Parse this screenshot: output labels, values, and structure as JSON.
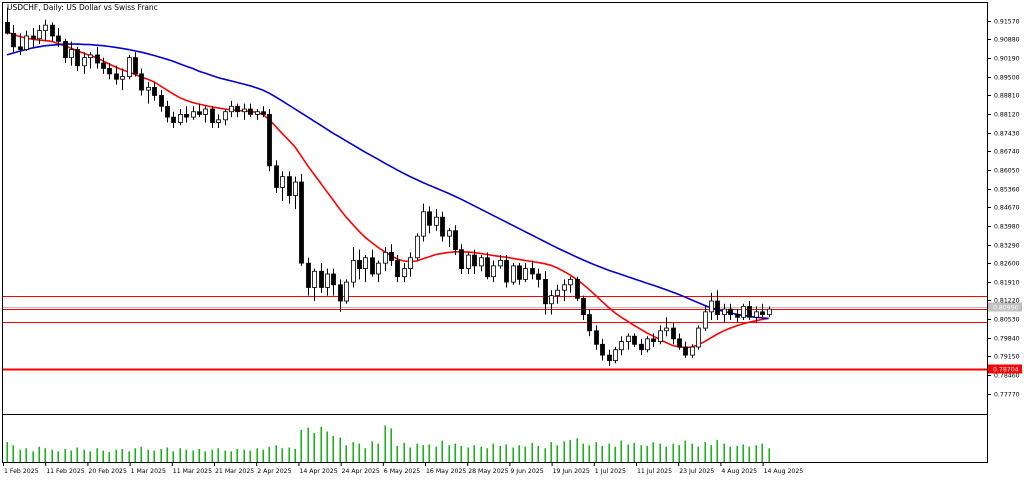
{
  "chart_data": {
    "type": "candlestick",
    "title": "USDCHF, Daily:  US Dollar vs Swiss Franc",
    "symbol": "USDCHF",
    "timeframe": "Daily",
    "ylim": [
      0.7706,
      0.9222
    ],
    "grid": false,
    "y_ticks": [
      "0.91570",
      "0.90880",
      "0.90190",
      "0.89500",
      "0.88810",
      "0.88120",
      "0.87430",
      "0.86740",
      "0.86050",
      "0.85360",
      "0.84670",
      "0.83980",
      "0.83290",
      "0.82600",
      "0.81910",
      "0.81220",
      "0.80530",
      "0.79840",
      "0.79150",
      "0.78460",
      "0.77770"
    ],
    "x_ticks": [
      "1 Feb 2025",
      "11 Feb 2025",
      "20 Feb 2025",
      "1 Mar 2025",
      "11 Mar 2025",
      "21 Mar 2025",
      "2 Apr 2025",
      "14 Apr 2025",
      "24 Apr 2025",
      "6 May 2025",
      "16 May 2025",
      "28 May 2025",
      "9 Jun 2025",
      "19 Jun 2025",
      "1 Jul 2025",
      "11 Jul 2025",
      "23 Jul 2025",
      "4 Aug 2025",
      "14 Aug 2025"
    ],
    "candles": [
      [
        0.915,
        0.9205,
        0.9105,
        0.911
      ],
      [
        0.911,
        0.914,
        0.904,
        0.906
      ],
      [
        0.906,
        0.911,
        0.903,
        0.905
      ],
      [
        0.905,
        0.912,
        0.9045,
        0.91
      ],
      [
        0.91,
        0.913,
        0.906,
        0.909
      ],
      [
        0.909,
        0.914,
        0.907,
        0.912
      ],
      [
        0.912,
        0.916,
        0.908,
        0.914
      ],
      [
        0.914,
        0.915,
        0.908,
        0.91
      ],
      [
        0.91,
        0.913,
        0.906,
        0.908
      ],
      [
        0.908,
        0.909,
        0.9,
        0.902
      ],
      [
        0.902,
        0.908,
        0.899,
        0.905
      ],
      [
        0.905,
        0.906,
        0.897,
        0.899
      ],
      [
        0.899,
        0.904,
        0.896,
        0.902
      ],
      [
        0.902,
        0.904,
        0.898,
        0.903
      ],
      [
        0.903,
        0.906,
        0.898,
        0.9
      ],
      [
        0.9,
        0.902,
        0.896,
        0.898
      ],
      [
        0.898,
        0.9,
        0.894,
        0.896
      ],
      [
        0.896,
        0.899,
        0.892,
        0.894
      ],
      [
        0.894,
        0.898,
        0.89,
        0.895
      ],
      [
        0.895,
        0.903,
        0.894,
        0.902
      ],
      [
        0.902,
        0.904,
        0.895,
        0.896
      ],
      [
        0.896,
        0.898,
        0.888,
        0.89
      ],
      [
        0.89,
        0.893,
        0.885,
        0.891
      ],
      [
        0.891,
        0.893,
        0.886,
        0.888
      ],
      [
        0.888,
        0.89,
        0.882,
        0.884
      ],
      [
        0.884,
        0.886,
        0.878,
        0.88
      ],
      [
        0.88,
        0.882,
        0.876,
        0.878
      ],
      [
        0.878,
        0.883,
        0.877,
        0.881
      ],
      [
        0.881,
        0.884,
        0.878,
        0.88
      ],
      [
        0.88,
        0.884,
        0.879,
        0.882
      ],
      [
        0.882,
        0.885,
        0.88,
        0.881
      ],
      [
        0.881,
        0.884,
        0.878,
        0.883
      ],
      [
        0.883,
        0.884,
        0.876,
        0.878
      ],
      [
        0.878,
        0.881,
        0.876,
        0.879
      ],
      [
        0.879,
        0.883,
        0.877,
        0.882
      ],
      [
        0.882,
        0.886,
        0.88,
        0.884
      ],
      [
        0.884,
        0.885,
        0.88,
        0.882
      ],
      [
        0.882,
        0.885,
        0.879,
        0.883
      ],
      [
        0.883,
        0.885,
        0.88,
        0.881
      ],
      [
        0.881,
        0.883,
        0.879,
        0.882
      ],
      [
        0.882,
        0.884,
        0.88,
        0.881
      ],
      [
        0.881,
        0.883,
        0.86,
        0.862
      ],
      [
        0.862,
        0.864,
        0.852,
        0.854
      ],
      [
        0.854,
        0.86,
        0.849,
        0.858
      ],
      [
        0.858,
        0.86,
        0.848,
        0.851
      ],
      [
        0.851,
        0.858,
        0.846,
        0.856
      ],
      [
        0.856,
        0.859,
        0.825,
        0.826
      ],
      [
        0.826,
        0.828,
        0.814,
        0.817
      ],
      [
        0.817,
        0.824,
        0.812,
        0.823
      ],
      [
        0.823,
        0.826,
        0.815,
        0.817
      ],
      [
        0.817,
        0.824,
        0.814,
        0.822
      ],
      [
        0.822,
        0.824,
        0.814,
        0.818
      ],
      [
        0.818,
        0.82,
        0.808,
        0.812
      ],
      [
        0.812,
        0.82,
        0.811,
        0.819
      ],
      [
        0.819,
        0.832,
        0.817,
        0.827
      ],
      [
        0.827,
        0.831,
        0.82,
        0.824
      ],
      [
        0.824,
        0.829,
        0.819,
        0.828
      ],
      [
        0.828,
        0.831,
        0.821,
        0.822
      ],
      [
        0.822,
        0.827,
        0.819,
        0.826
      ],
      [
        0.826,
        0.832,
        0.823,
        0.83
      ],
      [
        0.83,
        0.833,
        0.825,
        0.827
      ],
      [
        0.827,
        0.829,
        0.819,
        0.821
      ],
      [
        0.821,
        0.826,
        0.819,
        0.824
      ],
      [
        0.824,
        0.83,
        0.821,
        0.828
      ],
      [
        0.828,
        0.837,
        0.827,
        0.836
      ],
      [
        0.836,
        0.848,
        0.834,
        0.845
      ],
      [
        0.845,
        0.847,
        0.837,
        0.84
      ],
      [
        0.84,
        0.846,
        0.838,
        0.843
      ],
      [
        0.843,
        0.845,
        0.834,
        0.836
      ],
      [
        0.836,
        0.839,
        0.832,
        0.838
      ],
      [
        0.838,
        0.84,
        0.829,
        0.831
      ],
      [
        0.831,
        0.833,
        0.822,
        0.824
      ],
      [
        0.824,
        0.83,
        0.822,
        0.829
      ],
      [
        0.829,
        0.831,
        0.822,
        0.825
      ],
      [
        0.825,
        0.829,
        0.823,
        0.828
      ],
      [
        0.828,
        0.83,
        0.82,
        0.821
      ],
      [
        0.821,
        0.827,
        0.819,
        0.825
      ],
      [
        0.825,
        0.829,
        0.824,
        0.827
      ],
      [
        0.827,
        0.829,
        0.817,
        0.819
      ],
      [
        0.819,
        0.826,
        0.818,
        0.825
      ],
      [
        0.825,
        0.826,
        0.818,
        0.82
      ],
      [
        0.82,
        0.826,
        0.819,
        0.824
      ],
      [
        0.824,
        0.827,
        0.82,
        0.822
      ],
      [
        0.822,
        0.824,
        0.817,
        0.82
      ],
      [
        0.82,
        0.823,
        0.807,
        0.811
      ],
      [
        0.811,
        0.816,
        0.807,
        0.814
      ],
      [
        0.814,
        0.818,
        0.811,
        0.816
      ],
      [
        0.816,
        0.82,
        0.812,
        0.818
      ],
      [
        0.818,
        0.821,
        0.815,
        0.82
      ],
      [
        0.82,
        0.821,
        0.812,
        0.813
      ],
      [
        0.813,
        0.814,
        0.805,
        0.807
      ],
      [
        0.807,
        0.809,
        0.799,
        0.801
      ],
      [
        0.801,
        0.803,
        0.794,
        0.796
      ],
      [
        0.796,
        0.798,
        0.79,
        0.792
      ],
      [
        0.792,
        0.794,
        0.788,
        0.79
      ],
      [
        0.79,
        0.795,
        0.789,
        0.794
      ],
      [
        0.794,
        0.799,
        0.792,
        0.797
      ],
      [
        0.797,
        0.8,
        0.794,
        0.799
      ],
      [
        0.799,
        0.8,
        0.795,
        0.796
      ],
      [
        0.796,
        0.798,
        0.792,
        0.794
      ],
      [
        0.794,
        0.799,
        0.793,
        0.798
      ],
      [
        0.798,
        0.8,
        0.795,
        0.797
      ],
      [
        0.797,
        0.803,
        0.796,
        0.801
      ],
      [
        0.801,
        0.806,
        0.799,
        0.802
      ],
      [
        0.802,
        0.804,
        0.796,
        0.798
      ],
      [
        0.798,
        0.8,
        0.794,
        0.795
      ],
      [
        0.795,
        0.797,
        0.791,
        0.792
      ],
      [
        0.792,
        0.796,
        0.791,
        0.795
      ],
      [
        0.795,
        0.803,
        0.794,
        0.802
      ],
      [
        0.802,
        0.81,
        0.801,
        0.808
      ],
      [
        0.808,
        0.815,
        0.805,
        0.812
      ],
      [
        0.812,
        0.816,
        0.805,
        0.807
      ],
      [
        0.807,
        0.811,
        0.804,
        0.809
      ],
      [
        0.809,
        0.811,
        0.805,
        0.807
      ],
      [
        0.807,
        0.809,
        0.804,
        0.806
      ],
      [
        0.806,
        0.811,
        0.805,
        0.81
      ],
      [
        0.81,
        0.812,
        0.805,
        0.806
      ],
      [
        0.806,
        0.81,
        0.804,
        0.808
      ],
      [
        0.808,
        0.811,
        0.806,
        0.807
      ],
      [
        0.807,
        0.81,
        0.806,
        0.809
      ]
    ],
    "series": [
      {
        "color": "#ff0000",
        "values": [
          0.9115,
          0.9105,
          0.9098,
          0.9092,
          0.9088,
          0.9085,
          0.9083,
          0.908,
          0.9072,
          0.9064,
          0.9055,
          0.9045,
          0.9036,
          0.9028,
          0.902,
          0.9008,
          0.8996,
          0.8985,
          0.8975,
          0.8967,
          0.8958,
          0.8948,
          0.894,
          0.893,
          0.8915,
          0.89,
          0.8885,
          0.8872,
          0.8862,
          0.8854,
          0.8848,
          0.8843,
          0.8838,
          0.8834,
          0.883,
          0.8827,
          0.8825,
          0.8823,
          0.8821,
          0.8818,
          0.881,
          0.879,
          0.8765,
          0.874,
          0.8715,
          0.869,
          0.8655,
          0.862,
          0.8588,
          0.8556,
          0.8524,
          0.8492,
          0.846,
          0.843,
          0.8404,
          0.8378,
          0.8355,
          0.8336,
          0.8318,
          0.8302,
          0.8288,
          0.8275,
          0.8268,
          0.8266,
          0.8268,
          0.8276,
          0.8284,
          0.8292,
          0.8296,
          0.83,
          0.8302,
          0.8302,
          0.8301,
          0.8299,
          0.8296,
          0.8292,
          0.8288,
          0.8285,
          0.8282,
          0.8278,
          0.8274,
          0.827,
          0.8266,
          0.8262,
          0.8258,
          0.8252,
          0.8242,
          0.823,
          0.8216,
          0.82,
          0.8182,
          0.8162,
          0.814,
          0.8118,
          0.8096,
          0.8076,
          0.806,
          0.8045,
          0.803,
          0.8016,
          0.8002,
          0.799,
          0.7978,
          0.7966,
          0.7956,
          0.795,
          0.7948,
          0.795,
          0.7958,
          0.797,
          0.7984,
          0.7998,
          0.801,
          0.802,
          0.8028,
          0.8036,
          0.8042,
          0.8047,
          0.8052,
          0.8056
        ]
      },
      {
        "color": "#0000cc",
        "values": [
          0.903,
          0.9037,
          0.9044,
          0.905,
          0.9056,
          0.906,
          0.9064,
          0.9066,
          0.9068,
          0.907,
          0.907,
          0.907,
          0.9069,
          0.9068,
          0.9066,
          0.9064,
          0.9061,
          0.9058,
          0.9054,
          0.905,
          0.9045,
          0.904,
          0.9034,
          0.9028,
          0.9021,
          0.9014,
          0.9006,
          0.8997,
          0.8988,
          0.898,
          0.897,
          0.8962,
          0.8954,
          0.8946,
          0.894,
          0.8934,
          0.8928,
          0.8922,
          0.8916,
          0.8908,
          0.89,
          0.8888,
          0.8874,
          0.886,
          0.8845,
          0.883,
          0.8815,
          0.88,
          0.8785,
          0.877,
          0.8755,
          0.874,
          0.8726,
          0.8712,
          0.8698,
          0.8684,
          0.867,
          0.8657,
          0.8644,
          0.863,
          0.8617,
          0.8604,
          0.8592,
          0.858,
          0.8569,
          0.8558,
          0.8548,
          0.8538,
          0.8528,
          0.8518,
          0.8507,
          0.8496,
          0.8484,
          0.8472,
          0.846,
          0.8448,
          0.8436,
          0.8424,
          0.8412,
          0.84,
          0.8388,
          0.8376,
          0.8364,
          0.8352,
          0.834,
          0.8328,
          0.8316,
          0.8305,
          0.8294,
          0.8283,
          0.8272,
          0.8262,
          0.8252,
          0.8243,
          0.8234,
          0.8226,
          0.8218,
          0.821,
          0.8202,
          0.8194,
          0.8186,
          0.8178,
          0.817,
          0.8162,
          0.8153,
          0.8144,
          0.8134,
          0.8124,
          0.8114,
          0.8104,
          0.8095,
          0.8088,
          0.8082,
          0.8076,
          0.8071,
          0.8067,
          0.8063,
          0.806,
          0.8058,
          0.8055
        ]
      }
    ],
    "volume": [
      26,
      22,
      16,
      18,
      14,
      20,
      18,
      16,
      14,
      17,
      15,
      19,
      16,
      14,
      18,
      15,
      13,
      16,
      17,
      14,
      18,
      20,
      16,
      15,
      17,
      19,
      14,
      18,
      16,
      15,
      17,
      14,
      16,
      18,
      15,
      14,
      17,
      16,
      15,
      18,
      16,
      20,
      22,
      18,
      19,
      17,
      42,
      45,
      38,
      46,
      40,
      34,
      32,
      22,
      26,
      24,
      18,
      27,
      24,
      48,
      44,
      21,
      25,
      19,
      24,
      22,
      23,
      20,
      28,
      22,
      24,
      21,
      19,
      22,
      20,
      18,
      24,
      21,
      23,
      19,
      22,
      20,
      25,
      21,
      18,
      26,
      22,
      27,
      29,
      31,
      24,
      22,
      26,
      21,
      24,
      20,
      28,
      23,
      25,
      22,
      21,
      26,
      24,
      20,
      24,
      22,
      28,
      24,
      20,
      26,
      22,
      29,
      24,
      20,
      21,
      23,
      20,
      22,
      24,
      18
    ],
    "horizontal_lines": [
      {
        "value": 0.8138,
        "color": "#ff0000"
      },
      {
        "value": 0.809,
        "color": "#ff0000"
      },
      {
        "value": 0.8041,
        "color": "#ff0000"
      },
      {
        "value": 0.787,
        "color": "#ff0000"
      }
    ],
    "current_price_label": "0.80990",
    "level_label": "0.78704",
    "colors": {
      "axis": "#000000",
      "candle_up": "#ffffff",
      "candle_down": "#000000",
      "volume": "#00aa00",
      "level_box": "#ff0000",
      "current_box": "#c0c0c0"
    }
  }
}
